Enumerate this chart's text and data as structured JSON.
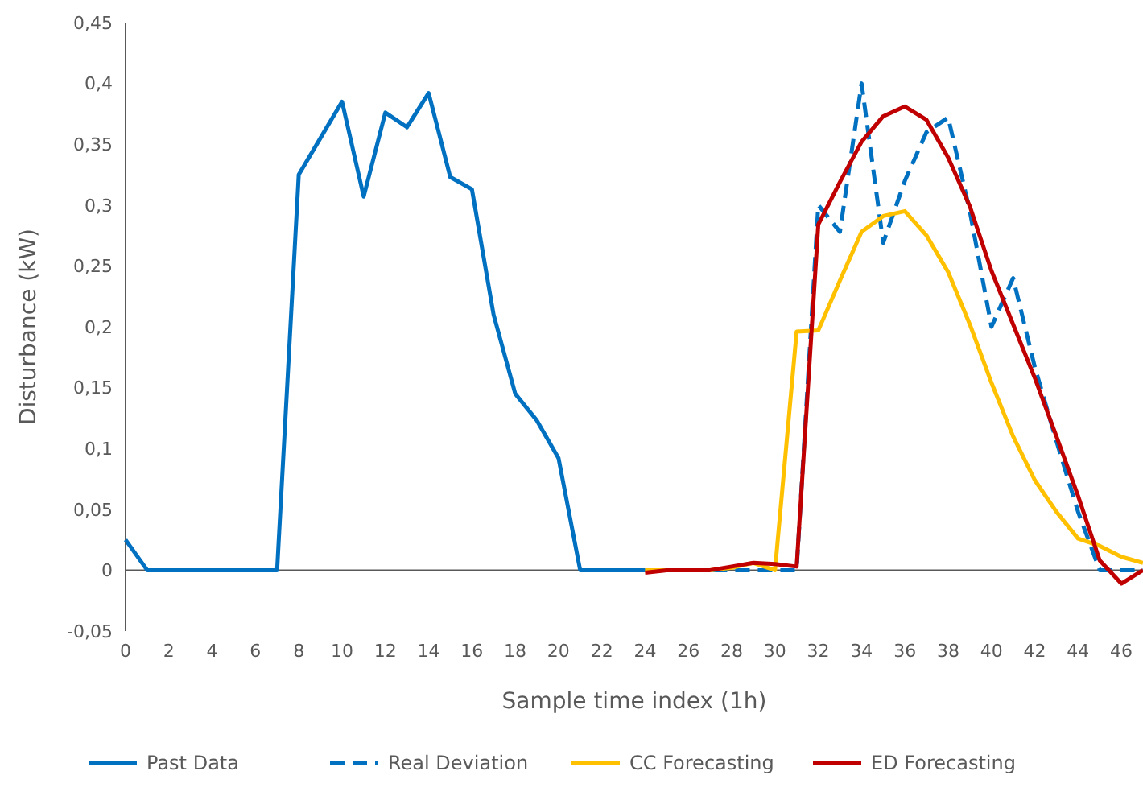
{
  "chart_data": {
    "type": "line",
    "xlabel": "Sample time index (1h)",
    "ylabel": "Disturbance (kW)",
    "xlim": [
      0,
      47
    ],
    "xticks": [
      0,
      2,
      4,
      6,
      8,
      10,
      12,
      14,
      16,
      18,
      20,
      22,
      24,
      26,
      28,
      30,
      32,
      34,
      36,
      38,
      40,
      42,
      44,
      46
    ],
    "ylim": [
      -0.05,
      0.45
    ],
    "yticks": [
      {
        "value": -0.05,
        "label": "-0,05"
      },
      {
        "value": 0,
        "label": "0"
      },
      {
        "value": 0.05,
        "label": "0,05"
      },
      {
        "value": 0.1,
        "label": "0,1"
      },
      {
        "value": 0.15,
        "label": "0,15"
      },
      {
        "value": 0.2,
        "label": "0,2"
      },
      {
        "value": 0.25,
        "label": "0,25"
      },
      {
        "value": 0.3,
        "label": "0,3"
      },
      {
        "value": 0.35,
        "label": "0,35"
      },
      {
        "value": 0.4,
        "label": "0,4"
      },
      {
        "value": 0.45,
        "label": "0,45"
      }
    ],
    "legend": "bottom",
    "marker": "none",
    "series": [
      {
        "name": "Past Data",
        "color": "#0070c0",
        "line_style": "solid",
        "x": [
          0,
          1,
          2,
          3,
          4,
          5,
          6,
          7,
          8,
          9,
          10,
          11,
          12,
          13,
          14,
          15,
          16,
          17,
          18,
          19,
          20,
          21,
          22,
          23,
          24
        ],
        "values": [
          0.025,
          0,
          0,
          0,
          0,
          0,
          0,
          0,
          0.325,
          0.355,
          0.385,
          0.307,
          0.376,
          0.364,
          0.392,
          0.323,
          0.313,
          0.21,
          0.145,
          0.123,
          0.092,
          0,
          0,
          0,
          0
        ]
      },
      {
        "name": "Real Deviation",
        "color": "#0070c0",
        "line_style": "dashed",
        "x": [
          24,
          25,
          26,
          27,
          28,
          29,
          30,
          31,
          32,
          33,
          34,
          35,
          36,
          37,
          38,
          39,
          40,
          41,
          42,
          43,
          44,
          45,
          46,
          47
        ],
        "values": [
          0,
          0,
          0,
          0,
          0,
          0,
          0,
          0,
          0.3,
          0.278,
          0.4,
          0.269,
          0.32,
          0.36,
          0.372,
          0.295,
          0.2,
          0.24,
          0.167,
          0.106,
          0.048,
          0,
          0,
          0
        ]
      },
      {
        "name": "CC Forecasting",
        "color": "#ffc000",
        "line_style": "solid",
        "x": [
          24,
          25,
          26,
          27,
          28,
          29,
          30,
          31,
          32,
          33,
          34,
          35,
          36,
          37,
          38,
          39,
          40,
          41,
          42,
          43,
          44,
          45,
          46,
          47
        ],
        "values": [
          0,
          0,
          0,
          0,
          0.002,
          0.006,
          0,
          0.196,
          0.197,
          0.238,
          0.278,
          0.291,
          0.295,
          0.275,
          0.245,
          0.202,
          0.154,
          0.11,
          0.074,
          0.048,
          0.026,
          0.02,
          0.011,
          0.006
        ]
      },
      {
        "name": "ED Forecasting",
        "color": "#c00000",
        "line_style": "solid",
        "x": [
          24,
          25,
          26,
          27,
          28,
          29,
          30,
          31,
          32,
          33,
          34,
          35,
          36,
          37,
          38,
          39,
          40,
          41,
          42,
          43,
          44,
          45,
          46,
          47
        ],
        "values": [
          -0.002,
          0,
          0,
          0,
          0.003,
          0.006,
          0.005,
          0.003,
          0.284,
          0.319,
          0.352,
          0.373,
          0.381,
          0.37,
          0.339,
          0.299,
          0.246,
          0.202,
          0.158,
          0.11,
          0.061,
          0.008,
          -0.011,
          0
        ]
      }
    ]
  }
}
